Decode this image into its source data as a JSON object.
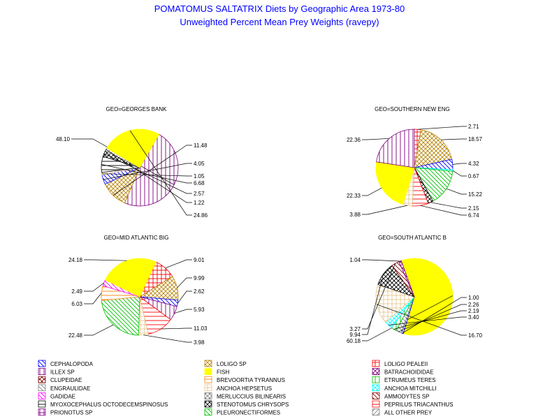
{
  "title_line1": "POMATOMUS SALTATRIX Diets by Geographic Area 1973-80",
  "title_line2": "Unweighted Percent Mean Prey Weights (ravepy)",
  "chart_data": [
    {
      "type": "pie",
      "title": "GEO=GEORGES BANK",
      "slices": [
        {
          "category": "ILLEX SP",
          "value": 48.1,
          "label": "48.10",
          "side": "left"
        },
        {
          "category": "LOLIGO SP",
          "value": 11.48,
          "label": "11.48",
          "side": "right"
        },
        {
          "category": "CEPHALOPODA",
          "value": 4.05,
          "label": "4.05",
          "side": "right"
        },
        {
          "category": "ANCHOA HEPSETUS",
          "value": 1.05,
          "label": "1.05",
          "side": "right"
        },
        {
          "category": "MYOXOCEPHALUS OCTODECEMSPINOSUS",
          "value": 6.68,
          "label": "6.68",
          "side": "right"
        },
        {
          "category": "STENOTOMUS CHRYSOPS",
          "value": 2.57,
          "label": "2.57",
          "side": "right"
        },
        {
          "category": "ALL OTHER PREY",
          "value": 1.22,
          "label": "1.22",
          "side": "right"
        },
        {
          "category": "FISH",
          "value": 24.86,
          "label": "24.86",
          "side": "right"
        }
      ]
    },
    {
      "type": "pie",
      "title": "GEO=SOUTHERN NEW ENG",
      "slices": [
        {
          "category": "LOLIGO PEALEII",
          "value": 2.71,
          "label": "2.71",
          "side": "right"
        },
        {
          "category": "LOLIGO SP",
          "value": 18.57,
          "label": "18.57",
          "side": "right"
        },
        {
          "category": "CEPHALOPODA",
          "value": 4.32,
          "label": "4.32",
          "side": "right"
        },
        {
          "category": "ANCHOA MITCHILLI",
          "value": 0.67,
          "label": "0.67",
          "side": "right"
        },
        {
          "category": "PLEURONECTIFORMES",
          "value": 15.22,
          "label": "15.22",
          "side": "right"
        },
        {
          "category": "STENOTOMUS CHRYSOPS",
          "value": 2.15,
          "label": "2.15",
          "side": "right"
        },
        {
          "category": "PEPRILUS TRIACANTHUS",
          "value": 6.74,
          "label": "6.74",
          "side": "right"
        },
        {
          "category": "ANCHOA HEPSETUS",
          "value": 3.88,
          "label": "3.88",
          "side": "left"
        },
        {
          "category": "FISH",
          "value": 22.33,
          "label": "22.33",
          "side": "left"
        },
        {
          "category": "ILLEX SP",
          "value": 22.36,
          "label": "22.36",
          "side": "left"
        }
      ]
    },
    {
      "type": "pie",
      "title": "GEO=MID ATLANTIC BIG",
      "slices": [
        {
          "category": "LOLIGO PEALEII",
          "value": 9.01,
          "label": "9.01",
          "side": "right"
        },
        {
          "category": "LOLIGO SP",
          "value": 9.99,
          "label": "9.99",
          "side": "right"
        },
        {
          "category": "CEPHALOPODA",
          "value": 2.62,
          "label": "2.62",
          "side": "right"
        },
        {
          "category": "ILLEX SP",
          "value": 5.93,
          "label": "5.93",
          "side": "right"
        },
        {
          "category": "PEPRILUS TRIACANTHUS",
          "value": 11.03,
          "label": "11.03",
          "side": "right"
        },
        {
          "category": "ANCHOA HEPSETUS",
          "value": 3.98,
          "label": "3.98",
          "side": "right"
        },
        {
          "category": "PLEURONECTIFORMES",
          "value": 22.48,
          "label": "22.48",
          "side": "left"
        },
        {
          "category": "BREVOORTIA TYRANNUS",
          "value": 6.03,
          "label": "6.03",
          "side": "left"
        },
        {
          "category": "GADIDAE",
          "value": 2.49,
          "label": "2.49",
          "side": "left"
        },
        {
          "category": "FISH",
          "value": 24.18,
          "label": "24.18",
          "side": "left"
        }
      ]
    },
    {
      "type": "pie",
      "title": "GEO=SOUTH ATLANTIC B",
      "slices": [
        {
          "category": "FISH",
          "value": 60.18,
          "label": "60.18",
          "side": "left"
        },
        {
          "category": "CEPHALOPODA",
          "value": 1.0,
          "label": "1.00",
          "side": "right"
        },
        {
          "category": "ENGRAULIDAE",
          "value": 2.26,
          "label": "2.26",
          "side": "right"
        },
        {
          "category": "ETRUMEUS TERES",
          "value": 2.19,
          "label": "2.19",
          "side": "right"
        },
        {
          "category": "ANCHOA MITCHILLI",
          "value": 3.4,
          "label": "3.40",
          "side": "right"
        },
        {
          "category": "ANCHOA HEPSETUS",
          "value": 16.7,
          "label": "16.70",
          "side": "right"
        },
        {
          "category": "STENOTOMUS CHRYSOPS",
          "value": 9.94,
          "label": "9.94",
          "side": "left"
        },
        {
          "category": "AMMODYTES SP",
          "value": 3.27,
          "label": "3.27",
          "side": "left"
        },
        {
          "category": "BATRACHOIDIDAE",
          "value": 1.04,
          "label": "1.04",
          "side": "left"
        }
      ]
    }
  ],
  "legend": [
    {
      "label": "CEPHALOPODA",
      "color": "#0000ff",
      "pattern": "diag-down"
    },
    {
      "label": "ILLEX SP",
      "color": "#800080",
      "pattern": "vertical"
    },
    {
      "label": "CLUPEIDAE",
      "color": "#800000",
      "pattern": "cross-diag"
    },
    {
      "label": "ENGRAULIDAE",
      "color": "#808080",
      "pattern": "diag-down"
    },
    {
      "label": "GADIDAE",
      "color": "#ff00ff",
      "pattern": "diag-down"
    },
    {
      "label": "MYOXOCEPHALUS OCTODECEMSPINOSUS",
      "color": "#000000",
      "pattern": "horizontal"
    },
    {
      "label": "PRIONOTUS SP",
      "color": "#800080",
      "pattern": "cross"
    },
    {
      "label": "LOLIGO SP",
      "color": "#b8860b",
      "pattern": "cross-diag"
    },
    {
      "label": "FISH",
      "color": "#ffff00",
      "pattern": "solid"
    },
    {
      "label": "BREVOORTIA TYRANNUS",
      "color": "#ff8000",
      "pattern": "horizontal"
    },
    {
      "label": "ANCHOA HEPSETUS",
      "color": "#e8c890",
      "pattern": "cross"
    },
    {
      "label": "MERLUCCIUS BILINEARIS",
      "color": "#808080",
      "pattern": "cross-diag"
    },
    {
      "label": "STENOTOMUS CHRYSOPS",
      "color": "#000000",
      "pattern": "cross-diag"
    },
    {
      "label": "PLEURONECTIFORMES",
      "color": "#00c000",
      "pattern": "diag-down"
    },
    {
      "label": "LOLIGO PEALEII",
      "color": "#ff0000",
      "pattern": "cross"
    },
    {
      "label": "BATRACHOIDIDAE",
      "color": "#800080",
      "pattern": "cross-diag"
    },
    {
      "label": "ETRUMEUS TERES",
      "color": "#00c000",
      "pattern": "vertical"
    },
    {
      "label": "ANCHOA MITCHILLI",
      "color": "#00ffff",
      "pattern": "cross-diag"
    },
    {
      "label": "AMMODYTES SP",
      "color": "#800000",
      "pattern": "diag-down"
    },
    {
      "label": "PEPRILUS TRIACANTHUS",
      "color": "#ff0000",
      "pattern": "horizontal"
    },
    {
      "label": "ALL OTHER PREY",
      "color": "#808080",
      "pattern": "diag-up"
    }
  ]
}
